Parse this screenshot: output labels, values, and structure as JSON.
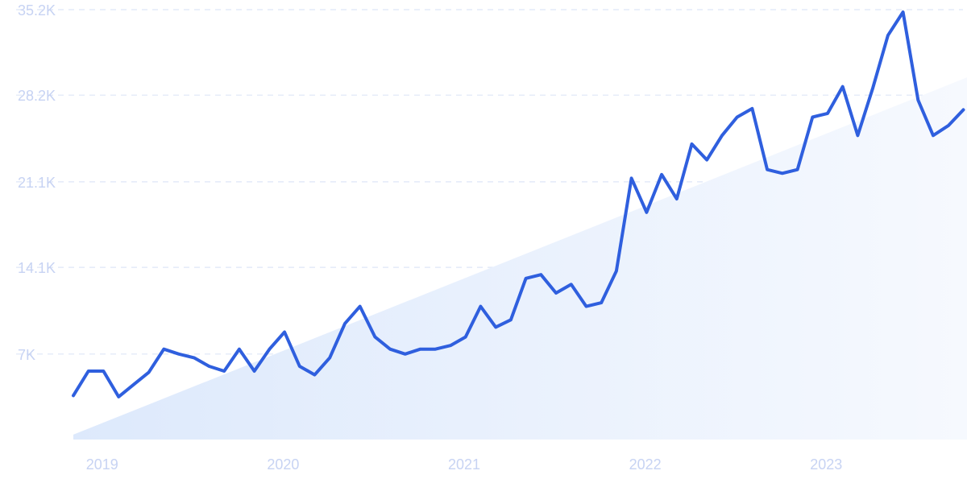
{
  "chart_data": {
    "type": "line",
    "title": "",
    "xlabel": "",
    "ylabel": "",
    "grid": true,
    "ylim": [
      0,
      35200
    ],
    "xlim": [
      "2018-12",
      "2023-10"
    ],
    "y_ticks": [
      {
        "value": 7000,
        "label": "7K"
      },
      {
        "value": 14100,
        "label": "14.1K"
      },
      {
        "value": 21100,
        "label": "21.1K"
      },
      {
        "value": 28200,
        "label": "28.2K"
      },
      {
        "value": 35200,
        "label": "35.2K"
      }
    ],
    "x_ticks": [
      {
        "value": "2019-01",
        "label": "2019"
      },
      {
        "value": "2020-01",
        "label": "2020"
      },
      {
        "value": "2021-01",
        "label": "2021"
      },
      {
        "value": "2022-01",
        "label": "2022"
      },
      {
        "value": "2023-01",
        "label": "2023"
      }
    ],
    "trend": {
      "start": {
        "x": "2018-12",
        "y": 400
      },
      "end": {
        "x": "2023-10",
        "y": 28800
      }
    },
    "series": [
      {
        "color": "#2f5fde",
        "x": [
          "2018-12",
          "2019-01",
          "2019-02",
          "2019-03",
          "2019-04",
          "2019-05",
          "2019-06",
          "2019-07",
          "2019-08",
          "2019-09",
          "2019-10",
          "2019-11",
          "2019-12",
          "2020-01",
          "2020-02",
          "2020-03",
          "2020-04",
          "2020-05",
          "2020-06",
          "2020-07",
          "2020-08",
          "2020-09",
          "2020-10",
          "2020-11",
          "2020-12",
          "2021-01",
          "2021-02",
          "2021-03",
          "2021-04",
          "2021-05",
          "2021-06",
          "2021-07",
          "2021-08",
          "2021-09",
          "2021-10",
          "2021-11",
          "2021-12",
          "2022-01",
          "2022-02",
          "2022-03",
          "2022-04",
          "2022-05",
          "2022-06",
          "2022-07",
          "2022-08",
          "2022-09",
          "2022-10",
          "2022-11",
          "2022-12",
          "2023-01",
          "2023-02",
          "2023-03",
          "2023-04",
          "2023-05",
          "2023-06",
          "2023-07",
          "2023-08",
          "2023-09",
          "2023-10",
          "2023-11"
        ],
        "values": [
          3600,
          5600,
          5600,
          3500,
          4500,
          5500,
          7400,
          7000,
          6700,
          6000,
          5600,
          7400,
          5600,
          7400,
          8800,
          6000,
          5300,
          6700,
          9500,
          10900,
          8400,
          7400,
          7000,
          7400,
          7400,
          7700,
          8400,
          10900,
          9200,
          9800,
          13200,
          13500,
          12000,
          12700,
          10900,
          11200,
          13800,
          21400,
          18600,
          21700,
          19700,
          24200,
          22900,
          24900,
          26400,
          27100,
          22100,
          21800,
          22100,
          26400,
          26700,
          28900,
          24900,
          28800,
          33100,
          35000,
          27800,
          24900,
          25700,
          27000
        ]
      }
    ]
  }
}
